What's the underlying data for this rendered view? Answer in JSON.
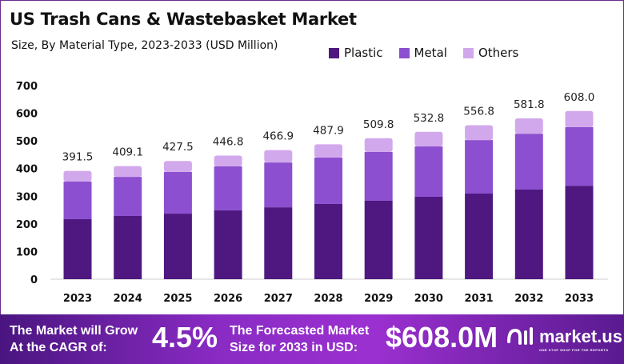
{
  "header": {
    "title": "US Trash Cans & Wastebasket Market",
    "subtitle": "Size, By Material Type, 2023-2033 (USD Million)"
  },
  "chart_data": {
    "type": "bar",
    "stacked": true,
    "title": "US Trash Cans & Wastebasket Market",
    "subtitle": "Size, By Material Type, 2023-2033 (USD Million)",
    "categories": [
      "2023",
      "2024",
      "2025",
      "2026",
      "2027",
      "2028",
      "2029",
      "2030",
      "2031",
      "2032",
      "2033"
    ],
    "series": [
      {
        "name": "Plastic",
        "color": "#4e1880",
        "values": [
          217,
          228.5,
          237,
          249,
          260,
          272,
          283.5,
          298,
          309.5,
          324,
          338
        ]
      },
      {
        "name": "Metal",
        "color": "#8b4fcf",
        "values": [
          136,
          141.5,
          151,
          159,
          162,
          168,
          176.5,
          182,
          193.5,
          202,
          212
        ]
      },
      {
        "name": "Others",
        "color": "#d2a8ec",
        "values": [
          38.5,
          39.1,
          39.5,
          38.8,
          44.9,
          47.9,
          49.8,
          52.8,
          53.8,
          55.8,
          58
        ]
      }
    ],
    "totals": [
      "391.5",
      "409.1",
      "427.5",
      "446.8",
      "466.9",
      "487.9",
      "509.8",
      "532.8",
      "556.8",
      "581.8",
      "608.0"
    ],
    "yticks": [
      "0",
      "100",
      "200",
      "300",
      "400",
      "500",
      "600",
      "700"
    ],
    "ylim": [
      0,
      700
    ],
    "grid": false,
    "legend_position": "top-right"
  },
  "banner": {
    "cagr_label_1": "The Market will Grow",
    "cagr_label_2": "At the CAGR of:",
    "cagr_value": "4.5%",
    "forecast_label_1": "The Forecasted Market",
    "forecast_label_2": "Size for 2033 in USD:",
    "forecast_value": "$608.0M",
    "logo_name": "market.us",
    "logo_tagline": "ONE STOP SHOP FOR THE REPORTS"
  }
}
